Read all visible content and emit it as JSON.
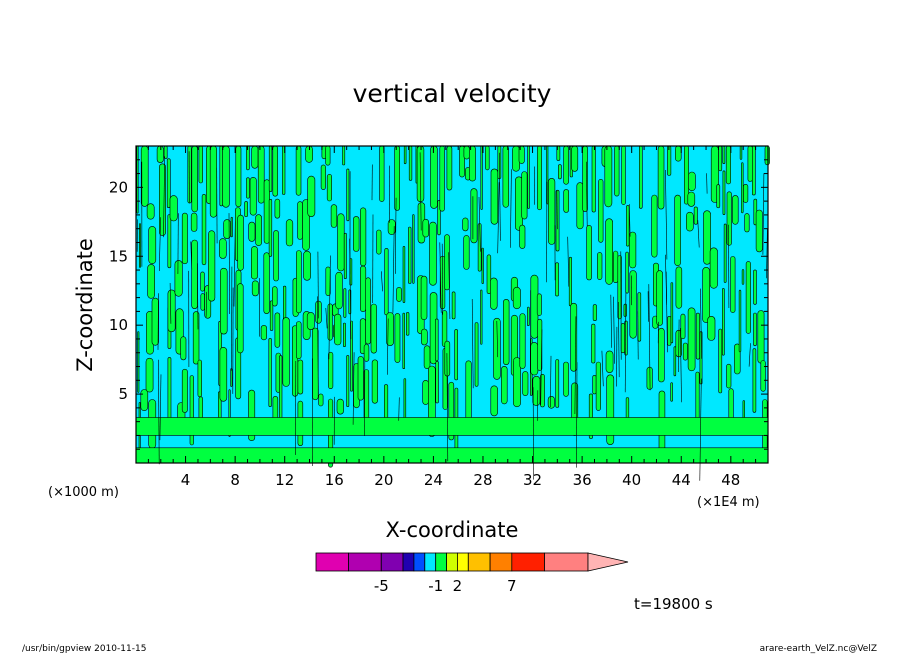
{
  "chart_data": {
    "type": "heatmap",
    "title": "vertical velocity",
    "xlabel": "X-coordinate",
    "ylabel": "Z-coordinate",
    "x_scale_note": "(×1E4 m)",
    "y_scale_note": "(×1000 m)",
    "xlim": [
      0,
      51
    ],
    "ylim": [
      0,
      23
    ],
    "x_ticks": [
      4,
      8,
      12,
      16,
      20,
      24,
      28,
      32,
      36,
      40,
      44,
      48
    ],
    "x_tick_labels": [
      "4",
      "8",
      "12",
      "16",
      "20",
      "24",
      "28",
      "32",
      "36",
      "40",
      "44",
      "48"
    ],
    "y_ticks": [
      5,
      10,
      15,
      20
    ],
    "y_tick_labels": [
      "5",
      "10",
      "15",
      "20"
    ],
    "time_label": "t=19800 s",
    "colorbar": {
      "colors": [
        "#e000b0",
        "#b000b0",
        "#8000b0",
        "#2000b0",
        "#0050ff",
        "#00e8ff",
        "#00ff40",
        "#d0ff00",
        "#ffff00",
        "#ffc000",
        "#ff8000",
        "#ff2000",
        "#ff8080",
        "#ffb4b4"
      ],
      "widths": [
        1.5,
        1.5,
        1,
        0.5,
        0.5,
        0.5,
        0.5,
        0.5,
        0.5,
        1,
        1,
        1.5,
        2,
        2
      ],
      "tick_labels": [
        {
          "label": "-5",
          "at_level": -5
        },
        {
          "label": "-1",
          "at_level": -1
        },
        {
          "label": "2",
          "at_level": 2
        },
        {
          "label": "7",
          "at_level": 7
        }
      ]
    },
    "field_colors": {
      "low": "#00e8ff",
      "high": "#00ff40",
      "contour": "#000000"
    }
  },
  "footer": {
    "left": "/usr/bin/gpview   2010-11-15",
    "right": "arare-earth_VelZ.nc@VelZ"
  }
}
